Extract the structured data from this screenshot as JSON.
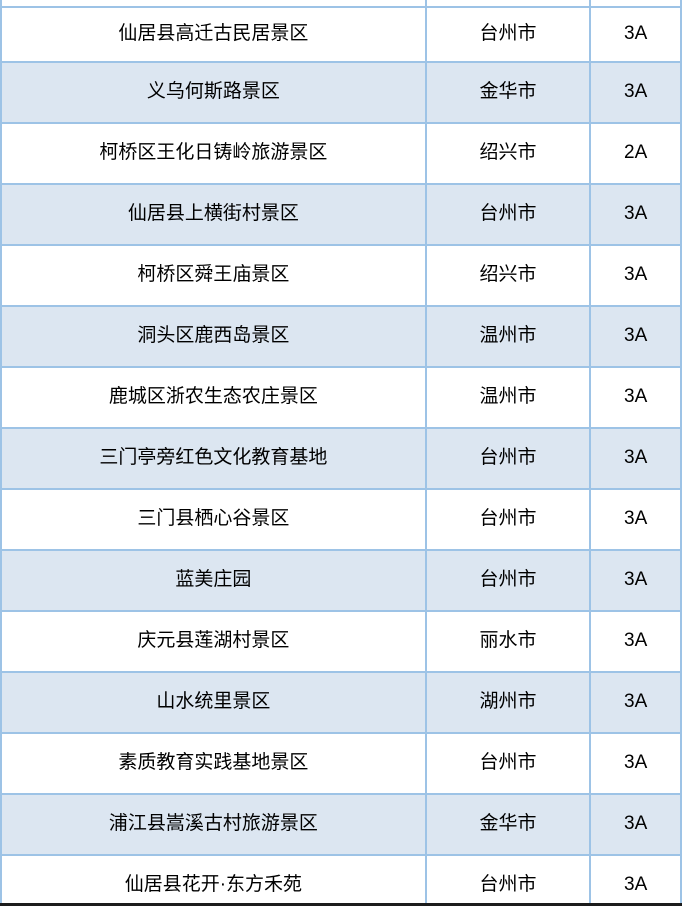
{
  "colors": {
    "border": "#9dc3e6",
    "stripe": "#dce6f1",
    "row_white": "#ffffff",
    "cutoff_line": "#1c1c1c",
    "text": "#000000"
  },
  "table": {
    "rows": [
      {
        "name": "仙居县高迁古民居景区",
        "city": "台州市",
        "grade": "3A"
      },
      {
        "name": "义乌何斯路景区",
        "city": "金华市",
        "grade": "3A"
      },
      {
        "name": "柯桥区王化日铸岭旅游景区",
        "city": "绍兴市",
        "grade": "2A"
      },
      {
        "name": "仙居县上横街村景区",
        "city": "台州市",
        "grade": "3A"
      },
      {
        "name": "柯桥区舜王庙景区",
        "city": "绍兴市",
        "grade": "3A"
      },
      {
        "name": "洞头区鹿西岛景区",
        "city": "温州市",
        "grade": "3A"
      },
      {
        "name": "鹿城区浙农生态农庄景区",
        "city": "温州市",
        "grade": "3A"
      },
      {
        "name": "三门亭旁红色文化教育基地",
        "city": "台州市",
        "grade": "3A"
      },
      {
        "name": "三门县栖心谷景区",
        "city": "台州市",
        "grade": "3A"
      },
      {
        "name": "蓝美庄园",
        "city": "台州市",
        "grade": "3A"
      },
      {
        "name": "庆元县莲湖村景区",
        "city": "丽水市",
        "grade": "3A"
      },
      {
        "name": "山水统里景区",
        "city": "湖州市",
        "grade": "3A"
      },
      {
        "name": "素质教育实践基地景区",
        "city": "台州市",
        "grade": "3A"
      },
      {
        "name": "浦江县嵩溪古村旅游景区",
        "city": "金华市",
        "grade": "3A"
      },
      {
        "name": "仙居县花开·东方禾苑",
        "city": "台州市",
        "grade": "3A"
      }
    ]
  }
}
